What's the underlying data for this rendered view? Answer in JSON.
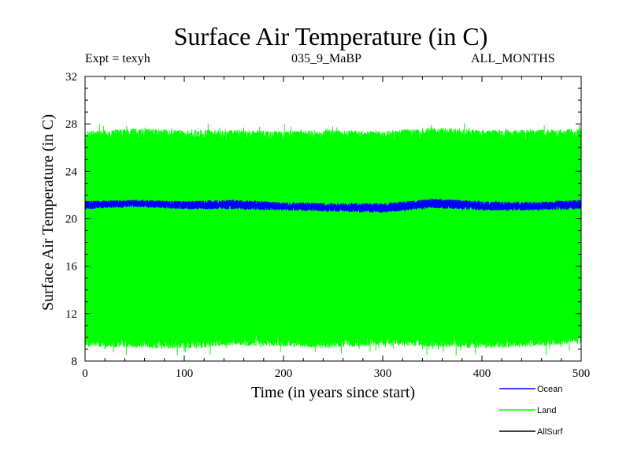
{
  "chart_data": {
    "type": "line",
    "title": "Surface Air Temperature (in C)",
    "subtitle_left": "Expt = texyh",
    "subtitle_center": "035_9_MaBP",
    "subtitle_right": "ALL_MONTHS",
    "xlabel": "Time (in years since start)",
    "ylabel": "Surface Air Temperature (in C)",
    "xlim": [
      0,
      500
    ],
    "ylim": [
      8,
      32
    ],
    "xticks": [
      0,
      100,
      200,
      300,
      400,
      500
    ],
    "yticks": [
      8,
      12,
      16,
      20,
      24,
      28,
      32
    ],
    "legend_position": "bottom-right",
    "series": [
      {
        "name": "Ocean",
        "color": "#0000ff",
        "description": "monthly values, nearly flat",
        "x": [
          0,
          50,
          100,
          150,
          200,
          250,
          300,
          350,
          400,
          450,
          500
        ],
        "mean": [
          21.1,
          21.3,
          21.1,
          21.2,
          21.0,
          21.0,
          20.9,
          21.3,
          21.1,
          21.0,
          21.1
        ],
        "min": [
          20.8,
          21.0,
          20.8,
          20.8,
          20.7,
          20.6,
          20.5,
          20.9,
          20.7,
          20.7,
          20.8
        ],
        "max": [
          21.5,
          21.6,
          21.5,
          21.6,
          21.4,
          21.3,
          21.3,
          21.7,
          21.5,
          21.4,
          21.6
        ]
      },
      {
        "name": "Land",
        "color": "#00ff00",
        "description": "monthly values with large seasonal cycle",
        "x": [
          0,
          50,
          100,
          150,
          200,
          250,
          300,
          350,
          400,
          450,
          500
        ],
        "min": [
          9.5,
          9.4,
          9.3,
          9.6,
          9.5,
          9.4,
          9.6,
          9.5,
          9.4,
          9.5,
          9.8
        ],
        "max": [
          27.2,
          27.4,
          27.3,
          27.3,
          27.2,
          27.3,
          27.2,
          27.5,
          27.3,
          27.3,
          27.4
        ],
        "extreme_min": 8.5,
        "extreme_max": 28.2
      },
      {
        "name": "AllSurf",
        "color": "#000000",
        "description": "not visibly drawn",
        "x": [],
        "values": []
      }
    ]
  }
}
